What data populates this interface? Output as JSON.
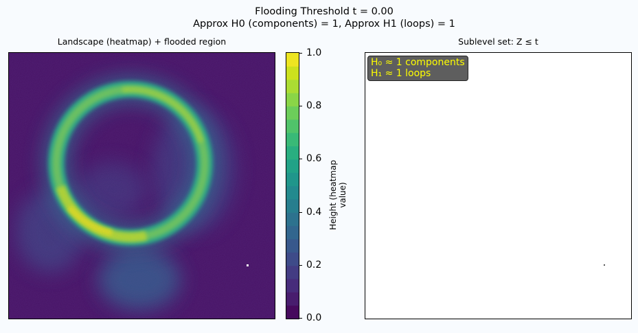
{
  "figure": {
    "title_line1": "Flooding Threshold t = 0.00",
    "title_line2": "Approx H0 (components) = 1, Approx H1 (loops) = 1"
  },
  "left_panel": {
    "title": "Landscape (heatmap) + flooded region"
  },
  "colorbar": {
    "label": "Height (heatmap value)",
    "colormap": "viridis",
    "levels": 20,
    "ticks": [
      "0.0",
      "0.2",
      "0.4",
      "0.6",
      "0.8",
      "1.0"
    ],
    "tick_values": [
      0.0,
      0.2,
      0.4,
      0.6,
      0.8,
      1.0
    ]
  },
  "right_panel": {
    "title": "Sublevel set: Z ≤ t",
    "annotation_line1": "H₀ ≈ 1 components",
    "annotation_line2": "H₁ ≈ 1 loops",
    "annotation_text_color": "#ffff00",
    "annotation_bg_color": "#5e5e5e"
  },
  "chart_data": [
    {
      "type": "heatmap",
      "title": "Landscape (heatmap) + flooded region",
      "colormap": "viridis",
      "value_range": [
        0.0,
        1.0
      ],
      "threshold": 0.0,
      "features": [
        {
          "kind": "ring",
          "description": "bright annulus",
          "peak_value": 1.0
        },
        {
          "kind": "diffuse blob",
          "peak_value": 0.35
        },
        {
          "kind": "flooded point",
          "value": 0.0
        }
      ]
    },
    {
      "type": "heatmap",
      "title": "Sublevel set: Z ≤ t",
      "threshold": 0.0,
      "h0_components": 1,
      "h1_loops": 1
    }
  ]
}
